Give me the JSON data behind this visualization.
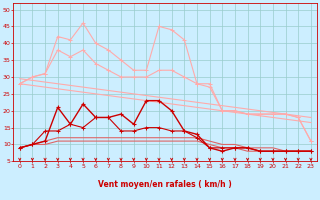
{
  "x": [
    0,
    1,
    2,
    3,
    4,
    5,
    6,
    7,
    8,
    9,
    10,
    11,
    12,
    13,
    14,
    15,
    16,
    17,
    18,
    19,
    20,
    21,
    22,
    23
  ],
  "line_rafales": [
    28,
    30,
    31,
    42,
    41,
    46,
    40,
    38,
    35,
    32,
    32,
    45,
    44,
    41,
    28,
    28,
    20,
    20,
    19,
    19,
    19,
    19,
    18,
    11
  ],
  "line_moy_upper": [
    28,
    30,
    31,
    38,
    36,
    38,
    34,
    32,
    30,
    30,
    30,
    32,
    32,
    30,
    28,
    27,
    20,
    20,
    19,
    19,
    19,
    19,
    18,
    11
  ],
  "line_trend1": [
    29.5,
    29.0,
    28.5,
    28.0,
    27.5,
    27.0,
    26.5,
    26.0,
    25.5,
    25.0,
    24.5,
    24.0,
    23.5,
    23.0,
    22.5,
    22.0,
    21.5,
    21.0,
    20.5,
    20.0,
    19.5,
    19.0,
    18.5,
    18.0
  ],
  "line_trend2": [
    28.0,
    27.5,
    27.0,
    26.5,
    26.0,
    25.5,
    25.0,
    24.5,
    24.0,
    23.5,
    23.0,
    22.5,
    22.0,
    21.5,
    21.0,
    20.5,
    20.0,
    19.5,
    19.0,
    18.5,
    18.0,
    17.5,
    17.0,
    16.5
  ],
  "line_mean": [
    9,
    10,
    11,
    21,
    16,
    22,
    18,
    18,
    19,
    16,
    23,
    23,
    20,
    14,
    13,
    9,
    8,
    9,
    9,
    8,
    8,
    8,
    8,
    8
  ],
  "line_min": [
    9,
    10,
    14,
    14,
    16,
    15,
    18,
    18,
    14,
    14,
    15,
    15,
    14,
    14,
    12,
    9,
    9,
    9,
    9,
    8,
    8,
    8,
    8,
    8
  ],
  "line_lower1": [
    9,
    10,
    11,
    12,
    12,
    12,
    12,
    12,
    12,
    12,
    12,
    12,
    12,
    12,
    12,
    11,
    10,
    10,
    9,
    9,
    9,
    8,
    8,
    8
  ],
  "line_lower2": [
    9,
    10,
    10,
    11,
    11,
    11,
    11,
    11,
    11,
    11,
    11,
    11,
    11,
    11,
    11,
    10,
    9,
    9,
    8,
    8,
    8,
    8,
    8,
    8
  ],
  "bg_color": "#cceeff",
  "grid_color": "#99cccc",
  "line_color_dark": "#cc0000",
  "line_color_mid": "#dd6666",
  "line_color_light": "#ffaaaa",
  "xlabel": "Vent moyen/en rafales ( km/h )",
  "ylim": [
    5,
    52
  ],
  "xlim": [
    -0.5,
    23.5
  ],
  "yticks": [
    5,
    10,
    15,
    20,
    25,
    30,
    35,
    40,
    45,
    50
  ],
  "xticks": [
    0,
    1,
    2,
    3,
    4,
    5,
    6,
    7,
    8,
    9,
    10,
    11,
    12,
    13,
    14,
    15,
    16,
    17,
    18,
    19,
    20,
    21,
    22,
    23
  ]
}
